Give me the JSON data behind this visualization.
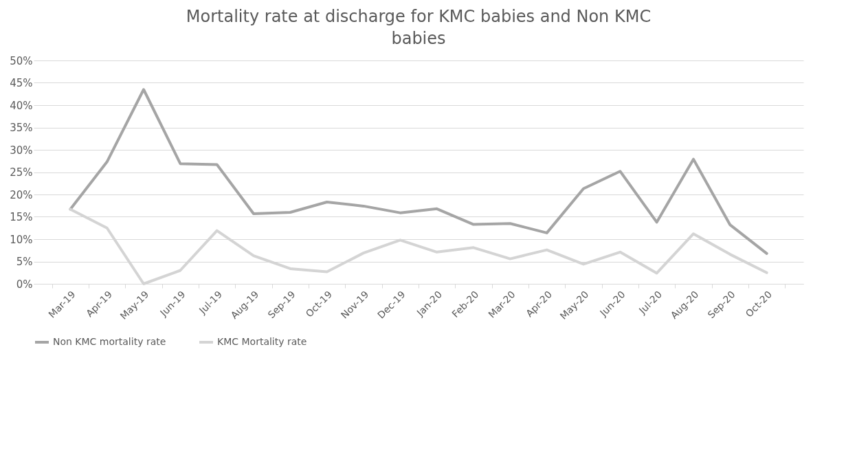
{
  "chart_data": {
    "type": "line",
    "title": "Mortality rate at discharge for KMC babies and Non KMC babies",
    "categories": [
      "Mar-19",
      "Apr-19",
      "May-19",
      "Jun-19",
      "Jul-19",
      "Aug-19",
      "Sep-19",
      "Oct-19",
      "Nov-19",
      "Dec-19",
      "Jan-20",
      "Feb-20",
      "Mar-20",
      "Apr-20",
      "May-20",
      "Jun-20",
      "Jul-20",
      "Aug-20",
      "Sep-20",
      "Oct-20"
    ],
    "series": [
      {
        "name": "Non KMC mortality rate",
        "color": "#a5a5a5",
        "values": [
          16.7,
          27.3,
          43.5,
          26.9,
          26.7,
          15.7,
          16.0,
          18.3,
          17.4,
          15.9,
          16.8,
          13.3,
          13.5,
          11.4,
          21.3,
          25.2,
          13.8,
          27.9,
          13.2,
          6.8
        ]
      },
      {
        "name": "KMC Mortality rate",
        "color": "#d4d4d4",
        "values": [
          16.7,
          12.5,
          0,
          3.0,
          11.9,
          6.3,
          3.4,
          2.7,
          6.9,
          9.8,
          7.1,
          8.1,
          5.6,
          7.6,
          4.4,
          7.1,
          2.4,
          11.2,
          6.6,
          2.5
        ]
      }
    ],
    "ylim": [
      0,
      50
    ],
    "yticks": [
      {
        "value": 0,
        "label": "0%"
      },
      {
        "value": 5,
        "label": "5%"
      },
      {
        "value": 10,
        "label": "10%"
      },
      {
        "value": 15,
        "label": "15%"
      },
      {
        "value": 20,
        "label": "20%"
      },
      {
        "value": 25,
        "label": "25%"
      },
      {
        "value": 30,
        "label": "30%"
      },
      {
        "value": 35,
        "label": "35%"
      },
      {
        "value": 40,
        "label": "40%"
      },
      {
        "value": 45,
        "label": "45%"
      },
      {
        "value": 50,
        "label": "50%"
      }
    ],
    "grid": "y",
    "legend": "bottom",
    "marker": "none",
    "line_style": "solid"
  }
}
